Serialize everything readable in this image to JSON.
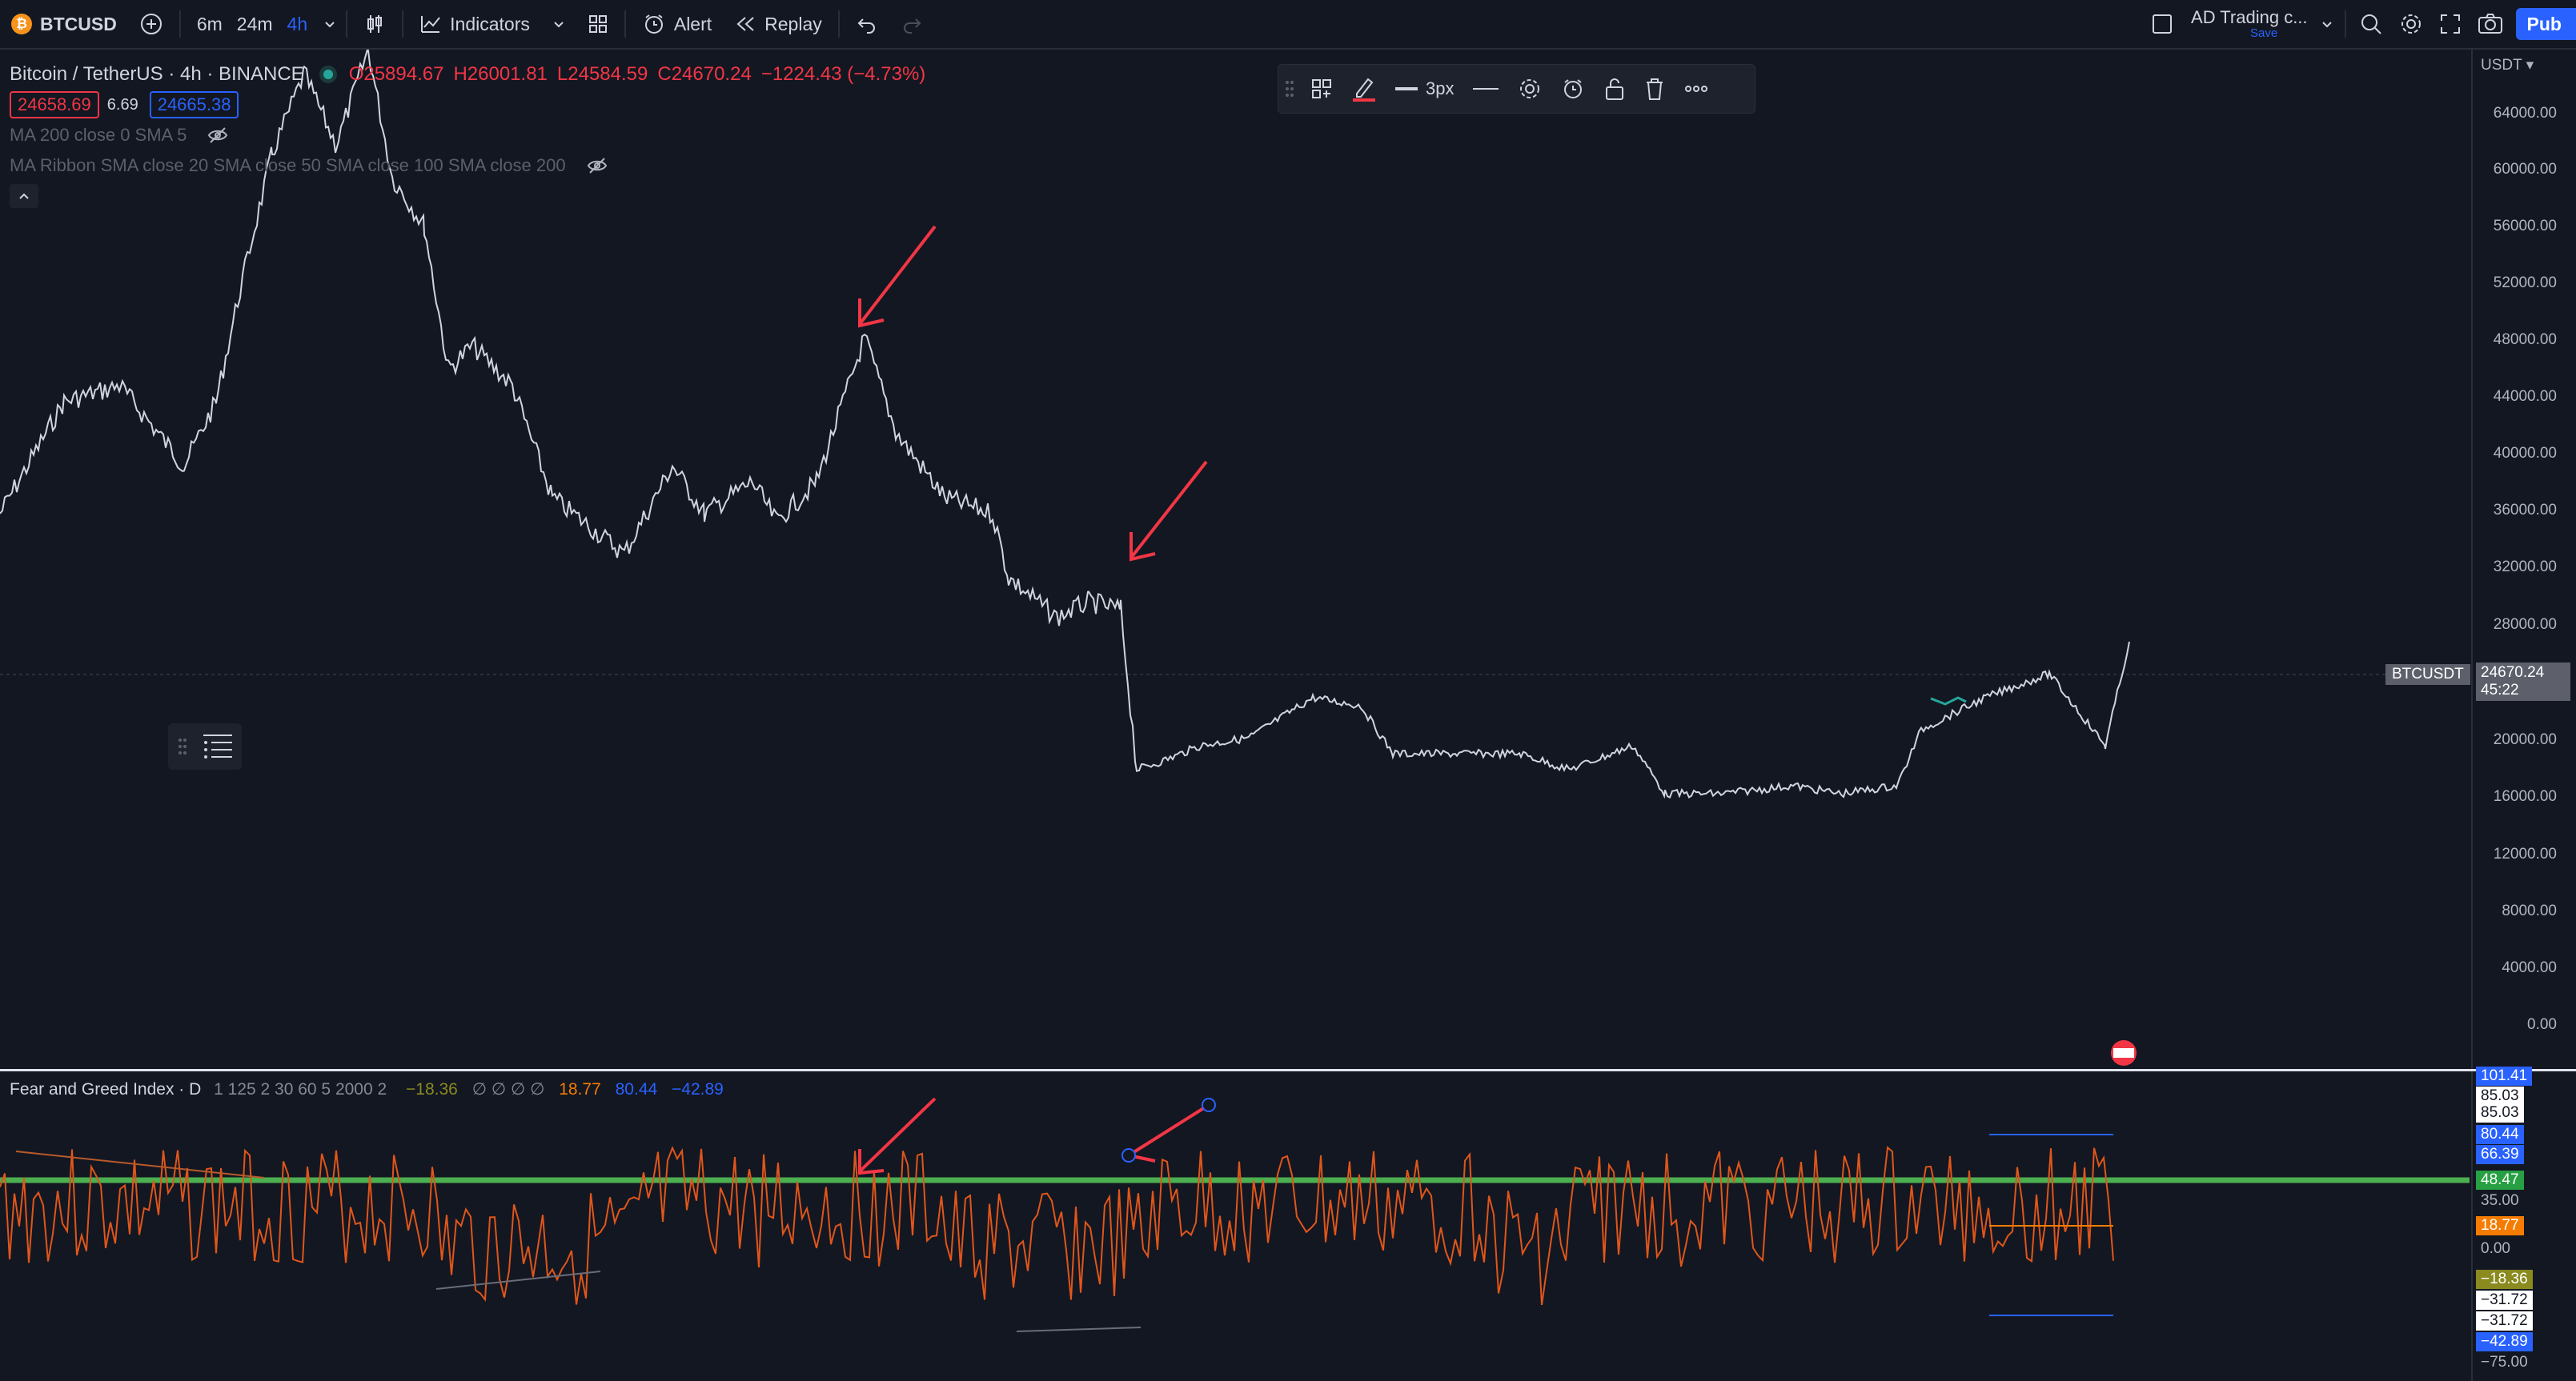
{
  "toolbar": {
    "symbol": "BTCUSD",
    "symbol_logo": "₿",
    "intervals": [
      "6m",
      "24m",
      "4h"
    ],
    "indicators_label": "Indicators",
    "alert_label": "Alert",
    "replay_label": "Replay",
    "layout_name": "AD Trading c...",
    "layout_status": "Save",
    "publish_label": "Pub",
    "icons": [
      "add-symbol-icon",
      "chevron-down-icon",
      "candles-icon",
      "indicators-icon",
      "templates-icon",
      "alert-icon",
      "replay-icon",
      "undo-icon",
      "redo-icon",
      "checkbox-icon",
      "search-icon",
      "settings-icon",
      "fullscreen-icon",
      "camera-icon"
    ]
  },
  "chart_header": {
    "title": "Bitcoin / TetherUS · 4h · BINANCE",
    "o": "O25894.67",
    "h": "H26001.81",
    "l": "L24584.59",
    "c": "C24670.24",
    "change": "−1224.43 (−4.73%)",
    "bid": "24658.69",
    "spread": "6.69",
    "ask": "24665.38",
    "ma_line": "MA 200 close 0 SMA 5",
    "ribbon_line": "MA Ribbon SMA close 20 SMA close 50 SMA close 100 SMA close 200"
  },
  "drawing_toolbar": {
    "width_label": "3px"
  },
  "price_axis": {
    "currency": "USDT",
    "labels": [
      "64000.00",
      "60000.00",
      "56000.00",
      "52000.00",
      "48000.00",
      "44000.00",
      "40000.00",
      "36000.00",
      "32000.00",
      "28000.00",
      "20000.00",
      "16000.00",
      "12000.00",
      "8000.00",
      "4000.00",
      "0.00"
    ],
    "last_symbol": "BTCUSDT",
    "last_price": "24670.24",
    "countdown": "45:22"
  },
  "indicator": {
    "title": "Fear and Greed Index · D",
    "params": "1 125 2 30 60 5 2000 2",
    "v1": "−18.36",
    "blanks": "∅ ∅ ∅ ∅",
    "v2": "18.77",
    "v3": "80.44",
    "v4": "−42.89",
    "axis_labels": [
      {
        "text": "101.41",
        "color": "#2962ff"
      },
      {
        "text": "85.03",
        "color": "#ffffff"
      },
      {
        "text": "85.03",
        "color": "#ffffff"
      },
      {
        "text": "80.44",
        "color": "#2962ff"
      },
      {
        "text": "66.39",
        "color": "#2962ff"
      },
      {
        "text": "48.47",
        "color": "#26a042"
      },
      {
        "text": "35.00",
        "color": "none"
      },
      {
        "text": "18.77",
        "color": "#f57c00"
      },
      {
        "text": "0.00",
        "color": "none"
      },
      {
        "text": "−18.36",
        "color": "#8a8a1f"
      },
      {
        "text": "−31.72",
        "color": "#ffffff"
      },
      {
        "text": "−31.72",
        "color": "#ffffff"
      },
      {
        "text": "−42.89",
        "color": "#2962ff"
      },
      {
        "text": "−75.00",
        "color": "none"
      }
    ]
  },
  "colors": {
    "bg": "#131722",
    "price_line": "#d1d4dc",
    "arrow": "#f23645",
    "green_line": "#4caf50",
    "osc_orange": "#e0561a",
    "osc_olive": "#8a8a1f"
  }
}
